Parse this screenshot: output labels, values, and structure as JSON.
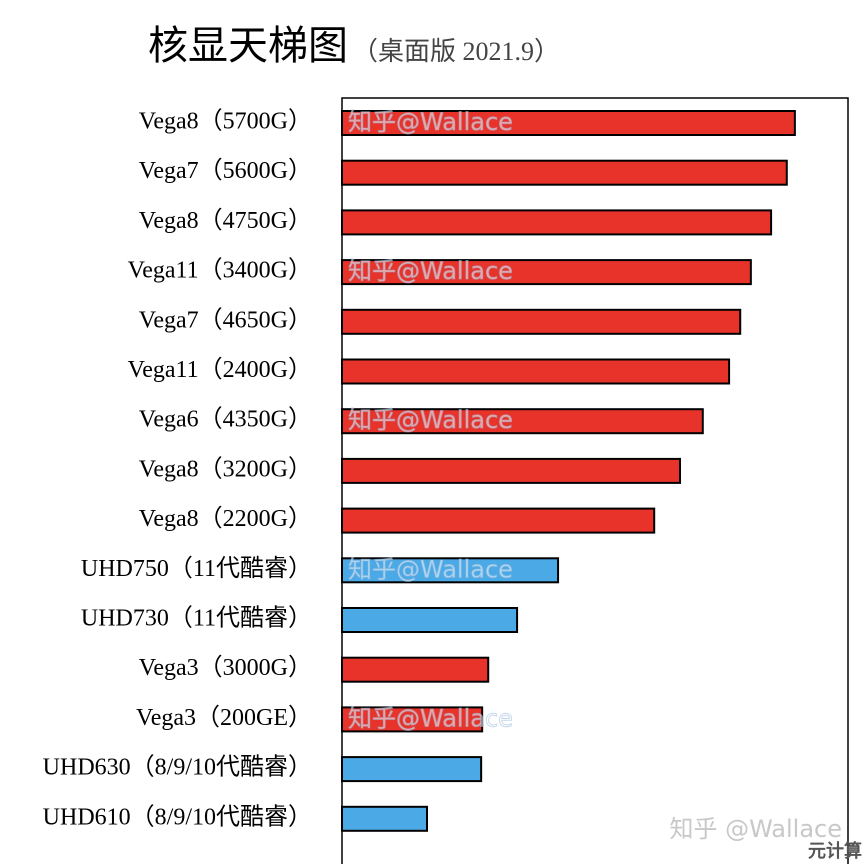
{
  "chart_data": {
    "type": "barh",
    "title": "核显天梯图",
    "subtitle": "（桌面版 2021.9）",
    "categories": [
      "Vega8（5700G）",
      "Vega7（5600G）",
      "Vega8（4750G）",
      "Vega11（3400G）",
      "Vega7（4650G）",
      "Vega11（2400G）",
      "Vega6（4350G）",
      "Vega8（3200G）",
      "Vega8（2200G）",
      "UHD750（11代酷睿）",
      "UHD730（11代酷睿）",
      "Vega3（3000G）",
      "Vega3（200GE）",
      "UHD630（8/9/10代酷睿）",
      "UHD610（8/9/10代酷睿）"
    ],
    "values": [
      89.5,
      87.9,
      84.8,
      80.8,
      78.7,
      76.5,
      71.3,
      66.8,
      61.7,
      42.7,
      34.6,
      28.9,
      27.7,
      27.5,
      16.8
    ],
    "colors": [
      "#e8332b",
      "#e8332b",
      "#e8332b",
      "#e8332b",
      "#e8332b",
      "#e8332b",
      "#e8332b",
      "#e8332b",
      "#e8332b",
      "#4ba9e6",
      "#4ba9e6",
      "#e8332b",
      "#e8332b",
      "#4ba9e6",
      "#4ba9e6"
    ],
    "xlim": [
      0,
      100
    ],
    "watermarks": [
      "知乎@Wallace",
      "知乎@Wallace",
      "知乎@Wallace",
      "知乎@Wallace",
      "知乎@Wallace"
    ],
    "footer_watermark": "知乎 @Wallace",
    "footer_badge": "元计算"
  }
}
